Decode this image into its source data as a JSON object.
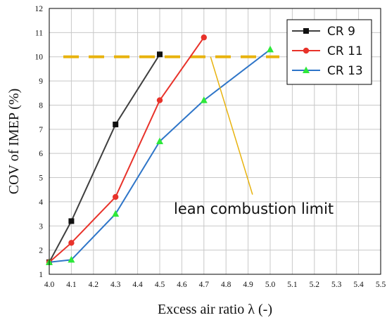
{
  "chart_data": {
    "type": "line",
    "xlabel": "Excess air ratio λ (-)",
    "ylabel": "COV of IMEP (%)",
    "xlim": [
      4.0,
      5.5
    ],
    "ylim": [
      1,
      12
    ],
    "xticks": [
      "4.0",
      "4.1",
      "4.2",
      "4.3",
      "4.4",
      "4.5",
      "4.6",
      "4.7",
      "4.8",
      "4.9",
      "5.0",
      "5.1",
      "5.2",
      "5.3",
      "5.4",
      "5.5"
    ],
    "yticks": [
      "1",
      "2",
      "3",
      "4",
      "5",
      "6",
      "7",
      "8",
      "9",
      "10",
      "11",
      "12"
    ],
    "grid": true,
    "legend_position": "top-right",
    "series": [
      {
        "name": "CR 9",
        "color": "#3f3f3f",
        "marker": "square",
        "points": [
          [
            4.0,
            1.5
          ],
          [
            4.1,
            3.2
          ],
          [
            4.3,
            7.2
          ],
          [
            4.5,
            10.1
          ]
        ]
      },
      {
        "name": "CR 11",
        "color": "#e8322a",
        "marker": "circle",
        "points": [
          [
            4.0,
            1.5
          ],
          [
            4.1,
            2.3
          ],
          [
            4.3,
            4.2
          ],
          [
            4.5,
            8.2
          ],
          [
            4.7,
            10.8
          ]
        ]
      },
      {
        "name": "CR 13",
        "color": "#2e75c8",
        "marker": "triangle",
        "points": [
          [
            4.0,
            1.5
          ],
          [
            4.1,
            1.6
          ],
          [
            4.3,
            3.5
          ],
          [
            4.5,
            6.5
          ],
          [
            4.7,
            8.2
          ],
          [
            5.0,
            10.3
          ]
        ]
      }
    ],
    "reference_line": {
      "y": 10,
      "color": "#e8b30f",
      "style": "dashed"
    },
    "annotation": {
      "text": "lean combustion limit",
      "color": "#e8b30f",
      "pointer_from": [
        4.92,
        4.3
      ],
      "pointer_to": [
        4.73,
        10
      ]
    }
  }
}
